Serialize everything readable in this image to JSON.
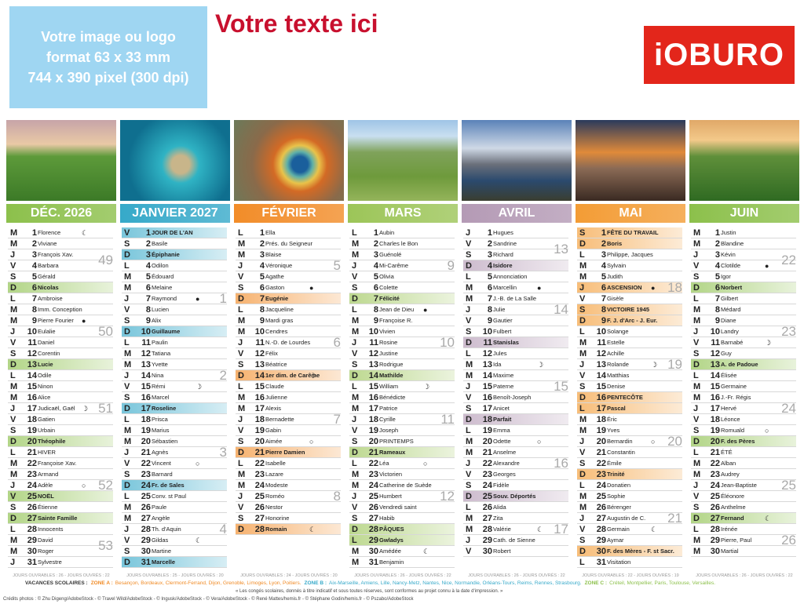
{
  "header": {
    "placeholder": [
      "Votre image ou logo",
      "format 63 x 33 mm",
      "744 x 390 pixel (300 dpi)"
    ],
    "title": "Votre texte ici",
    "logo": "iOBURO"
  },
  "months": [
    {
      "name": "DÉC. 2026",
      "color": "#8cc04b",
      "weeks": [
        49,
        50,
        51,
        52,
        53
      ],
      "holidays": [
        25
      ],
      "footer": "JOURS OUVRABLES : 26 - JOURS OUVRÉS : 22",
      "days": [
        [
          "M",
          1,
          "Florence",
          "☾"
        ],
        [
          "M",
          2,
          "Viviane"
        ],
        [
          "J",
          3,
          "François Xav."
        ],
        [
          "V",
          4,
          "Barbara"
        ],
        [
          "S",
          5,
          "Gérald"
        ],
        [
          "D",
          6,
          "Nicolas"
        ],
        [
          "L",
          7,
          "Ambroise"
        ],
        [
          "M",
          8,
          "Imm. Conception"
        ],
        [
          "M",
          9,
          "Pierre Fourier",
          "●"
        ],
        [
          "J",
          10,
          "Eulalie"
        ],
        [
          "V",
          11,
          "Daniel"
        ],
        [
          "S",
          12,
          "Corentin"
        ],
        [
          "D",
          13,
          "Lucie"
        ],
        [
          "L",
          14,
          "Odile"
        ],
        [
          "M",
          15,
          "Ninon"
        ],
        [
          "M",
          16,
          "Alice"
        ],
        [
          "J",
          17,
          "Judicaël, Gaël",
          "☽"
        ],
        [
          "V",
          18,
          "Gatien"
        ],
        [
          "S",
          19,
          "Urbain"
        ],
        [
          "D",
          20,
          "Théophile"
        ],
        [
          "L",
          21,
          "HIVER"
        ],
        [
          "M",
          22,
          "Françoise Xav."
        ],
        [
          "M",
          23,
          "Armand"
        ],
        [
          "J",
          24,
          "Adèle",
          "○"
        ],
        [
          "V",
          25,
          "NOËL"
        ],
        [
          "S",
          26,
          "Étienne"
        ],
        [
          "D",
          27,
          "Sainte Famille"
        ],
        [
          "L",
          28,
          "Innocents"
        ],
        [
          "M",
          29,
          "David"
        ],
        [
          "M",
          30,
          "Roger"
        ],
        [
          "J",
          31,
          "Sylvestre"
        ]
      ]
    },
    {
      "name": "JANVIER 2027",
      "color": "#36a9c9",
      "weeks": [
        1,
        2,
        3,
        4
      ],
      "holidays": [
        1
      ],
      "footer": "JOURS OUVRABLES : 25 - JOURS OUVRÉS : 20",
      "days": [
        [
          "V",
          1,
          "JOUR DE L'AN"
        ],
        [
          "S",
          2,
          "Basile"
        ],
        [
          "D",
          3,
          "Épiphanie"
        ],
        [
          "L",
          4,
          "Odilon"
        ],
        [
          "M",
          5,
          "Édouard"
        ],
        [
          "M",
          6,
          "Melaine"
        ],
        [
          "J",
          7,
          "Raymond",
          "●"
        ],
        [
          "V",
          8,
          "Lucien"
        ],
        [
          "S",
          9,
          "Alix"
        ],
        [
          "D",
          10,
          "Guillaume"
        ],
        [
          "L",
          11,
          "Paulin"
        ],
        [
          "M",
          12,
          "Tatiana"
        ],
        [
          "M",
          13,
          "Yvette"
        ],
        [
          "J",
          14,
          "Nina"
        ],
        [
          "V",
          15,
          "Rémi",
          "☽"
        ],
        [
          "S",
          16,
          "Marcel"
        ],
        [
          "D",
          17,
          "Roseline"
        ],
        [
          "L",
          18,
          "Prisca"
        ],
        [
          "M",
          19,
          "Marius"
        ],
        [
          "M",
          20,
          "Sébastien"
        ],
        [
          "J",
          21,
          "Agnès"
        ],
        [
          "V",
          22,
          "Vincent",
          "○"
        ],
        [
          "S",
          23,
          "Barnard"
        ],
        [
          "D",
          24,
          "Fr. de Sales"
        ],
        [
          "L",
          25,
          "Conv. st Paul"
        ],
        [
          "M",
          26,
          "Paule"
        ],
        [
          "M",
          27,
          "Angèle"
        ],
        [
          "J",
          28,
          "Th. d'Aquin"
        ],
        [
          "V",
          29,
          "Gildas",
          "☾"
        ],
        [
          "S",
          30,
          "Martine"
        ],
        [
          "D",
          31,
          "Marcelle"
        ]
      ]
    },
    {
      "name": "FÉVRIER",
      "color": "#f28c28",
      "weeks": [
        5,
        6,
        7,
        8
      ],
      "holidays": [],
      "footer": "JOURS OUVRABLES : 24 - JOURS OUVRÉS : 20",
      "days": [
        [
          "L",
          1,
          "Ella"
        ],
        [
          "M",
          2,
          "Prés. du Seigneur"
        ],
        [
          "M",
          3,
          "Blaise"
        ],
        [
          "J",
          4,
          "Véronique"
        ],
        [
          "V",
          5,
          "Agathe"
        ],
        [
          "S",
          6,
          "Gaston",
          "●"
        ],
        [
          "D",
          7,
          "Eugénie"
        ],
        [
          "L",
          8,
          "Jacqueline"
        ],
        [
          "M",
          9,
          "Mardi gras"
        ],
        [
          "M",
          10,
          "Cendres"
        ],
        [
          "J",
          11,
          "N.-D. de Lourdes"
        ],
        [
          "V",
          12,
          "Félix"
        ],
        [
          "S",
          13,
          "Béatrice"
        ],
        [
          "D",
          14,
          "1er dim. de Carême",
          "☽"
        ],
        [
          "L",
          15,
          "Claude"
        ],
        [
          "M",
          16,
          "Julienne"
        ],
        [
          "M",
          17,
          "Alexis"
        ],
        [
          "J",
          18,
          "Bernadette"
        ],
        [
          "V",
          19,
          "Gabin"
        ],
        [
          "S",
          20,
          "Aimée",
          "○"
        ],
        [
          "D",
          21,
          "Pierre Damien"
        ],
        [
          "L",
          22,
          "Isabelle"
        ],
        [
          "M",
          23,
          "Lazare"
        ],
        [
          "M",
          24,
          "Modeste"
        ],
        [
          "J",
          25,
          "Roméo"
        ],
        [
          "V",
          26,
          "Nestor"
        ],
        [
          "S",
          27,
          "Honorine"
        ],
        [
          "D",
          28,
          "Romain",
          "☾"
        ]
      ]
    },
    {
      "name": "MARS",
      "color": "#9cc558",
      "weeks": [
        9,
        10,
        11,
        12
      ],
      "holidays": [
        29
      ],
      "footer": "JOURS OUVRABLES : 26 - JOURS OUVRÉS : 22",
      "days": [
        [
          "L",
          1,
          "Aubin"
        ],
        [
          "M",
          2,
          "Charles le Bon"
        ],
        [
          "M",
          3,
          "Guénolé"
        ],
        [
          "J",
          4,
          "Mi-Carême"
        ],
        [
          "V",
          5,
          "Olivia"
        ],
        [
          "S",
          6,
          "Colette"
        ],
        [
          "D",
          7,
          "Félicité"
        ],
        [
          "L",
          8,
          "Jean de Dieu",
          "●"
        ],
        [
          "M",
          9,
          "Françoise R."
        ],
        [
          "M",
          10,
          "Vivien"
        ],
        [
          "J",
          11,
          "Rosine"
        ],
        [
          "V",
          12,
          "Justine"
        ],
        [
          "S",
          13,
          "Rodrigue"
        ],
        [
          "D",
          14,
          "Mathilde"
        ],
        [
          "L",
          15,
          "William",
          "☽"
        ],
        [
          "M",
          16,
          "Bénédicte"
        ],
        [
          "M",
          17,
          "Patrice"
        ],
        [
          "J",
          18,
          "Cyrille"
        ],
        [
          "V",
          19,
          "Joseph"
        ],
        [
          "S",
          20,
          "PRINTEMPS"
        ],
        [
          "D",
          21,
          "Rameaux"
        ],
        [
          "L",
          22,
          "Léa",
          "○"
        ],
        [
          "M",
          23,
          "Victorien"
        ],
        [
          "M",
          24,
          "Catherine de Suède"
        ],
        [
          "J",
          25,
          "Humbert"
        ],
        [
          "V",
          26,
          "Vendredi saint"
        ],
        [
          "S",
          27,
          "Habib"
        ],
        [
          "D",
          28,
          "PÂQUES"
        ],
        [
          "L",
          29,
          "Gwladys"
        ],
        [
          "M",
          30,
          "Amédée",
          "☾"
        ],
        [
          "M",
          31,
          "Benjamin"
        ]
      ]
    },
    {
      "name": "AVRIL",
      "color": "#b49ab5",
      "weeks": [
        13,
        14,
        15,
        16,
        17
      ],
      "holidays": [],
      "footer": "JOURS OUVRABLES : 26 - JOURS OUVRÉS : 22",
      "days": [
        [
          "J",
          1,
          "Hugues"
        ],
        [
          "V",
          2,
          "Sandrine"
        ],
        [
          "S",
          3,
          "Richard"
        ],
        [
          "D",
          4,
          "Isidore"
        ],
        [
          "L",
          5,
          "Annonciation"
        ],
        [
          "M",
          6,
          "Marcellin",
          "●"
        ],
        [
          "M",
          7,
          "J.-B. de La Salle"
        ],
        [
          "J",
          8,
          "Julie"
        ],
        [
          "V",
          9,
          "Gautier"
        ],
        [
          "S",
          10,
          "Fulbert"
        ],
        [
          "D",
          11,
          "Stanislas"
        ],
        [
          "L",
          12,
          "Jules"
        ],
        [
          "M",
          13,
          "Ida",
          "☽"
        ],
        [
          "M",
          14,
          "Maxime"
        ],
        [
          "J",
          15,
          "Paterne"
        ],
        [
          "V",
          16,
          "Benoît-Joseph"
        ],
        [
          "S",
          17,
          "Anicet"
        ],
        [
          "D",
          18,
          "Parfait"
        ],
        [
          "L",
          19,
          "Emma"
        ],
        [
          "M",
          20,
          "Odette",
          "○"
        ],
        [
          "M",
          21,
          "Anselme"
        ],
        [
          "J",
          22,
          "Alexandre"
        ],
        [
          "V",
          23,
          "Georges"
        ],
        [
          "S",
          24,
          "Fidèle"
        ],
        [
          "D",
          25,
          "Souv. Déportés"
        ],
        [
          "L",
          26,
          "Alida"
        ],
        [
          "M",
          27,
          "Zita"
        ],
        [
          "M",
          28,
          "Valérie",
          "☾"
        ],
        [
          "J",
          29,
          "Cath. de Sienne"
        ],
        [
          "V",
          30,
          "Robert"
        ]
      ]
    },
    {
      "name": "MAI",
      "color": "#f39c35",
      "weeks": [
        18,
        19,
        20,
        21
      ],
      "holidays": [
        1,
        6,
        8,
        17
      ],
      "footer": "JOURS OUVRABLES : 22 - JOURS OUVRÉS : 19",
      "days": [
        [
          "S",
          1,
          "FÊTE DU TRAVAIL"
        ],
        [
          "D",
          2,
          "Boris"
        ],
        [
          "L",
          3,
          "Philippe, Jacques"
        ],
        [
          "M",
          4,
          "Sylvain"
        ],
        [
          "M",
          5,
          "Judith"
        ],
        [
          "J",
          6,
          "ASCENSION",
          "●"
        ],
        [
          "V",
          7,
          "Gisèle"
        ],
        [
          "S",
          8,
          "VICTOIRE 1945"
        ],
        [
          "D",
          9,
          "F. J. d'Arc - J. Eur."
        ],
        [
          "L",
          10,
          "Solange"
        ],
        [
          "M",
          11,
          "Estelle"
        ],
        [
          "M",
          12,
          "Achille"
        ],
        [
          "J",
          13,
          "Rolande",
          "☽"
        ],
        [
          "V",
          14,
          "Matthias"
        ],
        [
          "S",
          15,
          "Denise"
        ],
        [
          "D",
          16,
          "PENTECÔTE"
        ],
        [
          "L",
          17,
          "Pascal"
        ],
        [
          "M",
          18,
          "Éric"
        ],
        [
          "M",
          19,
          "Yves"
        ],
        [
          "J",
          20,
          "Bernardin",
          "○"
        ],
        [
          "V",
          21,
          "Constantin"
        ],
        [
          "S",
          22,
          "Émile"
        ],
        [
          "D",
          23,
          "Trinité"
        ],
        [
          "L",
          24,
          "Donatien"
        ],
        [
          "M",
          25,
          "Sophie"
        ],
        [
          "M",
          26,
          "Bérenger"
        ],
        [
          "J",
          27,
          "Augustin de C."
        ],
        [
          "V",
          28,
          "Germain",
          "☾"
        ],
        [
          "S",
          29,
          "Aymar"
        ],
        [
          "D",
          30,
          "F. des Mères - F. st Sacr."
        ],
        [
          "L",
          31,
          "Visitation"
        ]
      ]
    },
    {
      "name": "JUIN",
      "color": "#8cc04b",
      "weeks": [
        22,
        23,
        24,
        25,
        26
      ],
      "holidays": [],
      "footer": "JOURS OUVRABLES : 26 - JOURS OUVRÉS : 22",
      "days": [
        [
          "M",
          1,
          "Justin"
        ],
        [
          "M",
          2,
          "Blandine"
        ],
        [
          "J",
          3,
          "Kévin"
        ],
        [
          "V",
          4,
          "Clotilde",
          "●"
        ],
        [
          "S",
          5,
          "Igor"
        ],
        [
          "D",
          6,
          "Norbert"
        ],
        [
          "L",
          7,
          "Gilbert"
        ],
        [
          "M",
          8,
          "Médard"
        ],
        [
          "M",
          9,
          "Diane"
        ],
        [
          "J",
          10,
          "Landry"
        ],
        [
          "V",
          11,
          "Barnabé",
          "☽"
        ],
        [
          "S",
          12,
          "Guy"
        ],
        [
          "D",
          13,
          "A. de Padoue"
        ],
        [
          "L",
          14,
          "Élisée"
        ],
        [
          "M",
          15,
          "Germaine"
        ],
        [
          "M",
          16,
          "J.-Fr. Régis"
        ],
        [
          "J",
          17,
          "Hervé"
        ],
        [
          "V",
          18,
          "Léonce"
        ],
        [
          "S",
          19,
          "Romuald",
          "○"
        ],
        [
          "D",
          20,
          "F. des Pères"
        ],
        [
          "L",
          21,
          "ÉTÉ"
        ],
        [
          "M",
          22,
          "Alban"
        ],
        [
          "M",
          23,
          "Audrey"
        ],
        [
          "J",
          24,
          "Jean-Baptiste"
        ],
        [
          "V",
          25,
          "Éléonore"
        ],
        [
          "S",
          26,
          "Anthelme"
        ],
        [
          "D",
          27,
          "Fernand",
          "☾"
        ],
        [
          "L",
          28,
          "Irénée"
        ],
        [
          "M",
          29,
          "Pierre, Paul"
        ],
        [
          "M",
          30,
          "Martial"
        ]
      ]
    }
  ],
  "vacances": {
    "label": "VACANCES SCOLAIRES :",
    "zones": [
      {
        "name": "ZONE A :",
        "color": "#f08a24",
        "cities": "Besançon, Bordeaux, Clermont-Ferrand, Dijon, Grenoble, Limoges, Lyon, Poitiers."
      },
      {
        "name": "ZONE B :",
        "color": "#36a9c9",
        "cities": "Aix-Marseille, Amiens, Lille, Nancy-Metz, Nantes, Nice, Normandie, Orléans-Tours, Reims, Rennes, Strasbourg."
      },
      {
        "name": "ZONE C :",
        "color": "#8cc04b",
        "cities": "Créteil, Montpellier, Paris, Toulouse, Versailles."
      }
    ]
  },
  "notice": "« Les congés scolaires, donnés à titre indicatif et sous toutes réserves, sont conformes au projet connu à la date d'impression. »",
  "credits": "Crédits photos : © Zhu Digeng/AdobeStock - © Travel Wild/AdobeStock - © Ingusk/AdobeStock - © Vera/AdobeStock - © René Mattes/hemis.fr - © Stéphane Godin/hemis.fr - © Pszabo/AdobeStock"
}
